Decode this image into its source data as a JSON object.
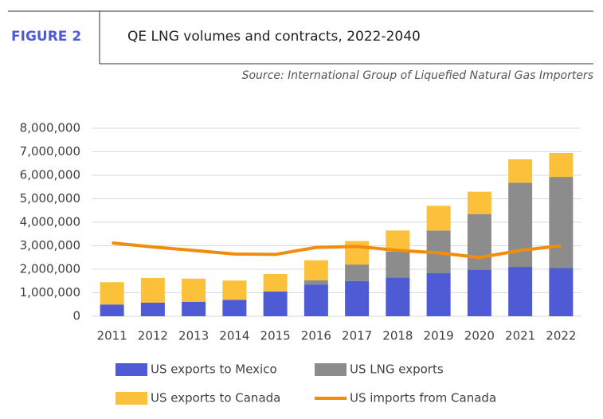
{
  "chart_data": {
    "type": "bar",
    "stacked": true,
    "figure_label": "FIGURE 2",
    "title": "QE LNG volumes and contracts, 2022-2040",
    "source": "Source: International Group of Liquefied Natural Gas Importers",
    "categories": [
      "2011",
      "2012",
      "2013",
      "2014",
      "2015",
      "2016",
      "2017",
      "2018",
      "2019",
      "2020",
      "2021",
      "2022"
    ],
    "series": [
      {
        "name": "US exports to Mexico",
        "color": "#4f5bd5",
        "values": [
          500000,
          580000,
          620000,
          700000,
          1050000,
          1350000,
          1500000,
          1650000,
          1830000,
          1980000,
          2100000,
          2050000
        ]
      },
      {
        "name": "US LNG exports",
        "color": "#8c8c8c",
        "values": [
          0,
          0,
          0,
          0,
          0,
          180000,
          700000,
          1100000,
          1820000,
          2370000,
          3580000,
          3880000
        ]
      },
      {
        "name": "US exports to Canada",
        "color": "#fbc13a",
        "values": [
          950000,
          1050000,
          980000,
          820000,
          750000,
          850000,
          1000000,
          900000,
          1050000,
          950000,
          1000000,
          1020000
        ]
      },
      {
        "name": "US imports from Canada",
        "color": "#f28c0e",
        "type": "line",
        "values": [
          3120000,
          2950000,
          2800000,
          2650000,
          2630000,
          2930000,
          2970000,
          2800000,
          2700000,
          2500000,
          2800000,
          3000000
        ]
      }
    ],
    "ylim": [
      0,
      8000000
    ],
    "yticks": [
      0,
      {
        "value": 1000000,
        "label": "1,000,000"
      },
      {
        "value": 2000000,
        "label": "2,000,000"
      },
      {
        "value": 3000000,
        "label": "3,000,000"
      },
      {
        "value": 4000000,
        "label": "4,000,000"
      },
      {
        "value": 5000000,
        "label": "5,000,000"
      },
      {
        "value": 6000000,
        "label": "6,000,000"
      },
      {
        "value": 7000000,
        "label": "7,000,000"
      },
      {
        "value": 8000000,
        "label": "8,000,000"
      }
    ],
    "grid": true,
    "legend": "bottom"
  }
}
